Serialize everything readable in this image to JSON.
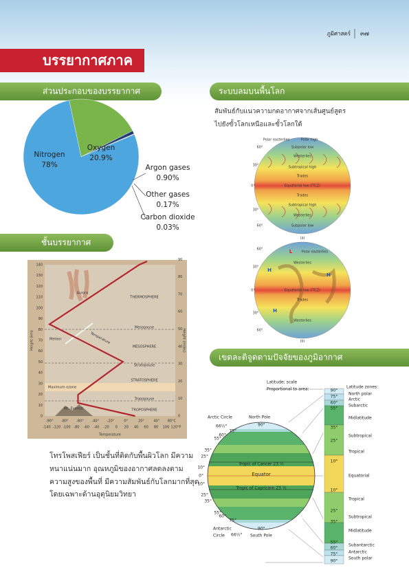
{
  "header": {
    "subject": "ภูมิศาสตร์",
    "page": "๓๗"
  },
  "title": "บรรยากาศภาค",
  "sections": [
    "ส่วนประกอบของบรรยากาศ",
    "ระบบลมบนพื้นโลก",
    "ชั้นบรรยากาศ",
    "เขตละติจูดตามปัจจัยของภูมิอากาศ"
  ],
  "composition": {
    "type": "pie",
    "categories": [
      "Nitrogen",
      "Oxygen",
      "Argon gases",
      "Other gases",
      "Carbon dioxide"
    ],
    "values": [
      78,
      20.9,
      0.9,
      0.17,
      0.03
    ],
    "value_labels": [
      "78%",
      "20.9%",
      "0.90%",
      "0.17%",
      "0.03%"
    ],
    "colors": [
      "#4ea6de",
      "#79b54a",
      "#1d3c7c",
      "#e0782c",
      "#d8c49a"
    ]
  },
  "wind_system": {
    "caption": [
      "สัมพันธ์กับแนวความกดอากาศจากเส้นศูนย์สูตร",
      "ไปยังขั้วโลกเหนือและขั้วโลกใต้"
    ],
    "globe_a": {
      "labels": [
        "Polar easterlies",
        "Polar high",
        "Subpolar low",
        "Westerlies",
        "Subtropical high",
        "Trades",
        "Equatorial low (ITCZ)",
        "Trades",
        "Subtropical high",
        "Westerlies",
        "Subpolar low"
      ],
      "degrees": [
        "60°",
        "30°",
        "0°",
        "30°",
        "60°"
      ],
      "caption": "(a)"
    },
    "globe_b": {
      "labels": [
        "L",
        "Polar easterlies",
        "Westerlies",
        "H",
        "H",
        "Equatorial low (ITCZ)",
        "Trades",
        "H",
        "Westerlies"
      ],
      "degrees": [
        "60°",
        "30°",
        "0°",
        "30°",
        "60°"
      ],
      "caption": "(b)"
    }
  },
  "atmosphere": {
    "layers": [
      "THERMOSPHERE",
      "Mesopause",
      "MESOSPHERE",
      "Stratopause",
      "STRATOSPHERE",
      "Tropopause",
      "TROPOSPHERE"
    ],
    "annotations": [
      "Aurora",
      "Meteor",
      "Temperature",
      "Maximum ozone",
      "Mt. Everest"
    ],
    "y_left_label": "Height (km)",
    "y_right_label": "Height (miles)",
    "x_label": "Temperature",
    "y_left_ticks": [
      "0",
      "10",
      "20",
      "30",
      "40",
      "50",
      "60",
      "70",
      "80",
      "90",
      "100",
      "110",
      "120",
      "130",
      "140"
    ],
    "y_right_ticks": [
      "0",
      "10",
      "20",
      "30",
      "40",
      "50",
      "60",
      "70",
      "80",
      "90"
    ],
    "x_ticks_c": [
      "-90°",
      "-80°",
      "-60°",
      "-40°",
      "-20°",
      "0°",
      "20°",
      "40°",
      "60°C"
    ],
    "x_ticks_f": [
      "-140",
      "-120",
      "-100",
      "-80",
      "-60",
      "-40",
      "-20",
      "0",
      "20",
      "40",
      "60",
      "80",
      "100",
      "120°F"
    ]
  },
  "atmosphere_text": [
    "โทรโพสเฟียร์ เป็นชั้นที่ติดกับพื้นผิวโลก มีความ",
    "หนาแน่นมาก อุณหภูมิของอากาศลดลงตาม",
    "ความสูงของพื้นที่ มีความสัมพันธ์กับโลกมากที่สุด",
    "โดยเฉพาะด้านอุตุนิยมวิทยา"
  ],
  "latitude": {
    "scale_title": [
      "Latitude; scale",
      "Proportional to area:"
    ],
    "zones_title": "Latitude zones:",
    "zones": [
      "North polar",
      "Arctic",
      "Subarctic",
      "Midlatitude",
      "Subtropical",
      "Tropical",
      "Equatorial",
      "Tropical",
      "Subtropical",
      "Midlatitude",
      "Subantarctic",
      "Antarctic",
      "South polar"
    ],
    "bar_degrees": [
      "90°",
      "75°",
      "60°",
      "55°",
      "35°",
      "25°",
      "10°",
      "10°",
      "25°",
      "35°",
      "55°",
      "60°",
      "75°",
      "90°"
    ],
    "globe_labels": [
      "Arctic Circle",
      "66½°",
      "North Pole",
      "90°",
      "Tropic of Cancer 23 ½",
      "Equator",
      "Tropic of Capricorn 23 ½",
      "Antarctic",
      "Circle",
      "66½°",
      "90°",
      "South Pole"
    ],
    "globe_degrees": [
      "75°",
      "60°",
      "55°",
      "35°",
      "25°",
      "10°",
      "0°",
      "10°",
      "25°",
      "35°",
      "55°",
      "60°",
      "75°"
    ]
  }
}
